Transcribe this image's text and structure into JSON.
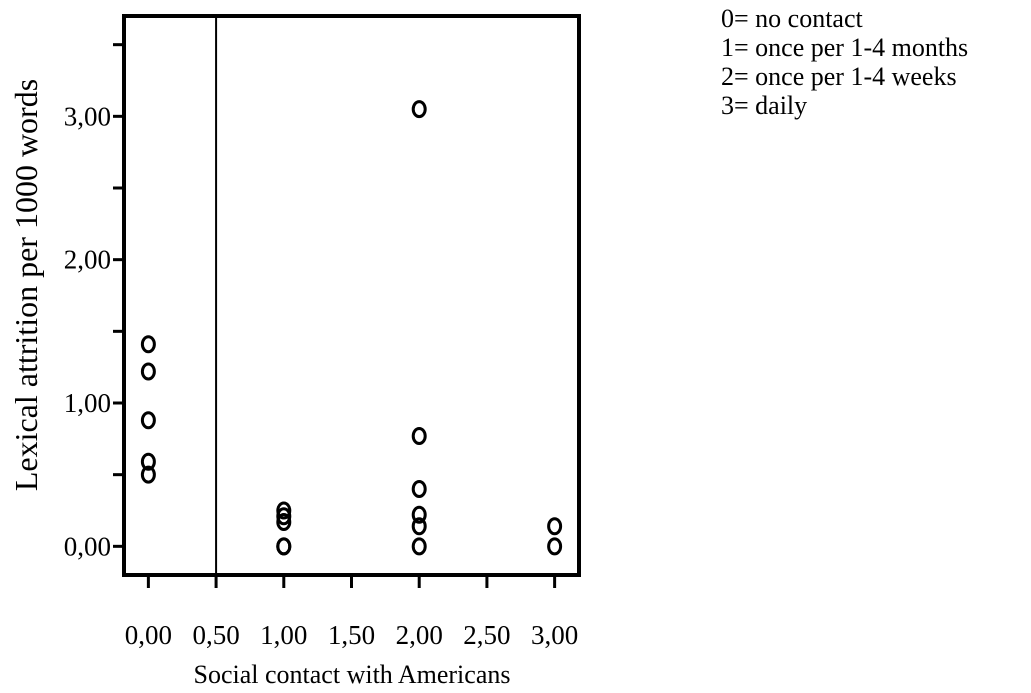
{
  "chart_data": {
    "type": "scatter",
    "xlabel": "Social contact with Americans",
    "ylabel": "Lexical attrition per 1000 words",
    "xlim": [
      -0.18,
      3.18
    ],
    "ylim": [
      -0.2,
      3.7
    ],
    "x_ticks": [
      0,
      0.5,
      1,
      1.5,
      2,
      2.5,
      3
    ],
    "x_tick_labels": [
      "0,00",
      "0,50",
      "1,00",
      "1,50",
      "2,00",
      "2,50",
      "3,00"
    ],
    "y_ticks": [
      0,
      1,
      2,
      3
    ],
    "y_tick_labels": [
      "0,00",
      "1,00",
      "2,00",
      "3,00"
    ],
    "y_minor_ticks": [
      0.5,
      1.5,
      2.5,
      3.5
    ],
    "reference_line": {
      "axis": "x",
      "value": 0.5
    },
    "grid": false,
    "marker": "open-circle",
    "color": "#000000",
    "points": [
      {
        "x": 0,
        "y": 1.41
      },
      {
        "x": 0,
        "y": 1.22
      },
      {
        "x": 0,
        "y": 0.88
      },
      {
        "x": 0,
        "y": 0.59
      },
      {
        "x": 0,
        "y": 0.5
      },
      {
        "x": 1,
        "y": 0.25
      },
      {
        "x": 1,
        "y": 0.21
      },
      {
        "x": 1,
        "y": 0.17
      },
      {
        "x": 1,
        "y": 0
      },
      {
        "x": 1,
        "y": 0
      },
      {
        "x": 2,
        "y": 3.05
      },
      {
        "x": 2,
        "y": 0.77
      },
      {
        "x": 2,
        "y": 0.4
      },
      {
        "x": 2,
        "y": 0.22
      },
      {
        "x": 2,
        "y": 0.14
      },
      {
        "x": 2,
        "y": 0
      },
      {
        "x": 3,
        "y": 0.14
      },
      {
        "x": 3,
        "y": 0
      }
    ],
    "legend_placement": "top-right",
    "legend": [
      "0= no contact",
      "1= once per 1-4 months",
      "2= once per 1-4 weeks",
      "3= daily"
    ]
  }
}
